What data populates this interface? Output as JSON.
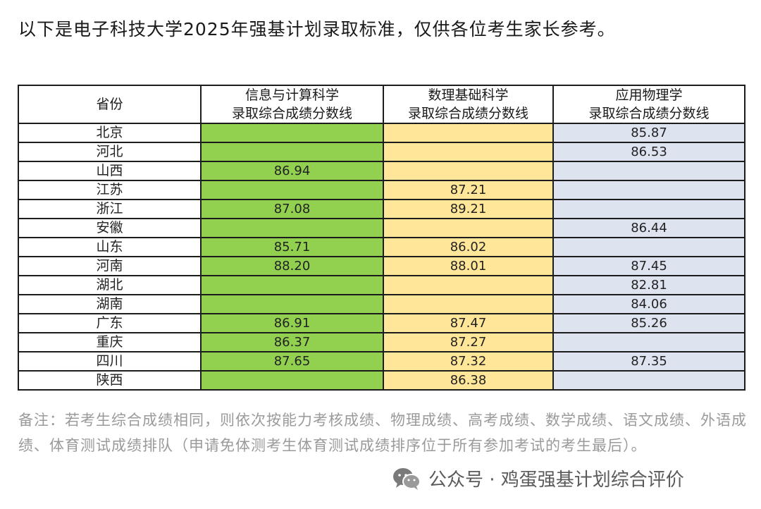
{
  "intro_text": "以下是电子科技大学2025年强基计划录取标准，仅供各位考生家长参考。",
  "table": {
    "headers": [
      "省份",
      "信息与计算科学\n录取综合成绩分数线",
      "数理基础科学\n录取综合成绩分数线",
      "应用物理学\n录取综合成绩分数线"
    ],
    "rows": [
      {
        "province": "北京",
        "info": "",
        "math": "",
        "phys": "85.87"
      },
      {
        "province": "河北",
        "info": "",
        "math": "",
        "phys": "86.53"
      },
      {
        "province": "山西",
        "info": "86.94",
        "math": "",
        "phys": ""
      },
      {
        "province": "江苏",
        "info": "",
        "math": "87.21",
        "phys": ""
      },
      {
        "province": "浙江",
        "info": "87.08",
        "math": "89.21",
        "phys": ""
      },
      {
        "province": "安徽",
        "info": "",
        "math": "",
        "phys": "86.44"
      },
      {
        "province": "山东",
        "info": "85.71",
        "math": "86.02",
        "phys": ""
      },
      {
        "province": "河南",
        "info": "88.20",
        "math": "88.01",
        "phys": "87.45"
      },
      {
        "province": "湖北",
        "info": "",
        "math": "",
        "phys": "82.81"
      },
      {
        "province": "湖南",
        "info": "",
        "math": "",
        "phys": "84.06"
      },
      {
        "province": "广东",
        "info": "86.91",
        "math": "87.47",
        "phys": "85.26"
      },
      {
        "province": "重庆",
        "info": "86.37",
        "math": "87.27",
        "phys": ""
      },
      {
        "province": "四川",
        "info": "87.65",
        "math": "87.32",
        "phys": "87.35"
      },
      {
        "province": "陕西",
        "info": "",
        "math": "86.38",
        "phys": ""
      }
    ]
  },
  "note_text": "备注：若考生综合成绩相同，则依次按能力考核成绩、物理成绩、高考成绩、数学成绩、语文成绩、外语成绩、体育测试成绩排队（申请免体测考生体育测试成绩排序位于所有参加考试的考生最后）。",
  "watermark": {
    "icon": "wechat-icon",
    "text": "公众号 · 鸡蛋强基计划综合评价"
  },
  "colors": {
    "info_column": "#92d050",
    "math_column": "#ffe699",
    "phys_column": "#dde3ef",
    "note_text": "#9a9a9a"
  }
}
